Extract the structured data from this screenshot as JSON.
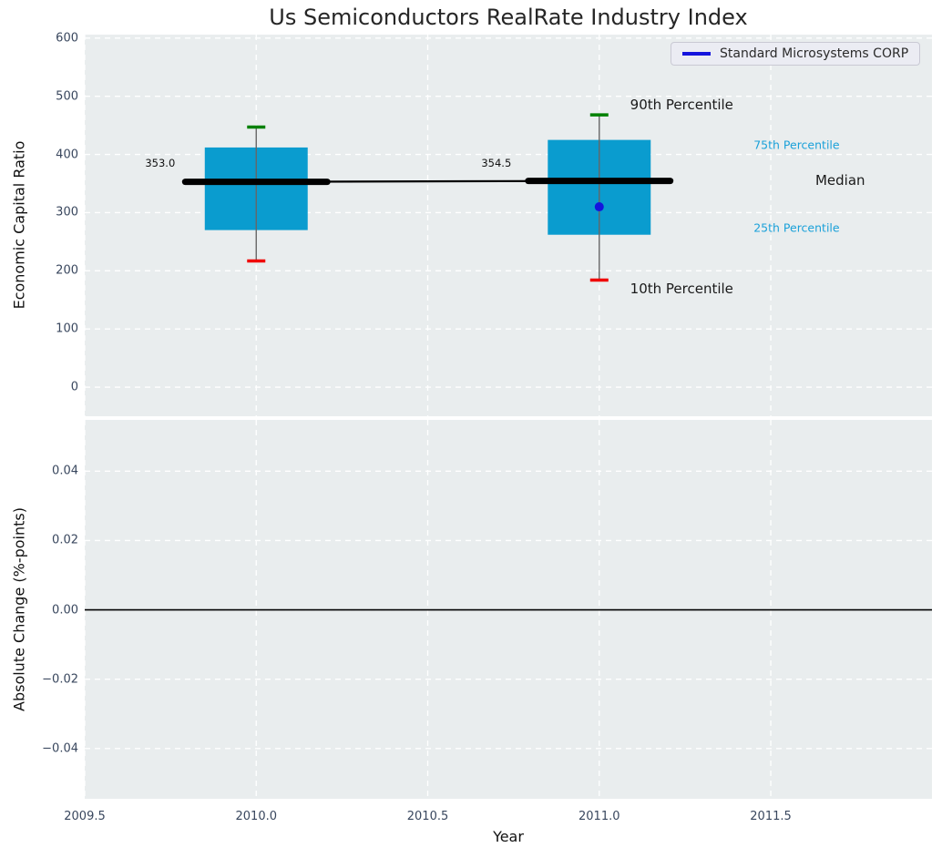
{
  "figure": {
    "title": "Us Semiconductors RealRate Industry Index",
    "legend": {
      "label": "Standard Microsystems CORP"
    }
  },
  "colors": {
    "plot_bg": "#e9edee",
    "grid": "#ffffff",
    "box_fill": "#0a9ccf",
    "whisker": "#666666",
    "cap_top": "#008000",
    "cap_bottom": "#f00000",
    "median_line": "#000000",
    "series_blue": "#1414dd",
    "tick_label": "#39475e",
    "percentile_label": "#1ba1d9",
    "zero_line": "#000000"
  },
  "chart_data": [
    {
      "type": "boxplot",
      "panel": "top",
      "title": "Us Semiconductors RealRate Industry Index",
      "ylabel": "Economic Capital Ratio",
      "xlim": [
        2009.5,
        2011.97
      ],
      "ylim": [
        -50,
        606
      ],
      "grid": true,
      "legend_position": "upper right",
      "xticks": [
        {
          "value": 2009.5,
          "label": "2009.5"
        },
        {
          "value": 2010.0,
          "label": "2010.0"
        },
        {
          "value": 2010.5,
          "label": "2010.5"
        },
        {
          "value": 2011.0,
          "label": "2011.0"
        },
        {
          "value": 2011.5,
          "label": "2011.5"
        }
      ],
      "yticks": [
        {
          "value": 0,
          "label": "0"
        },
        {
          "value": 100,
          "label": "100"
        },
        {
          "value": 200,
          "label": "200"
        },
        {
          "value": 300,
          "label": "300"
        },
        {
          "value": 400,
          "label": "400"
        },
        {
          "value": 500,
          "label": "500"
        },
        {
          "value": 600,
          "label": "600"
        }
      ],
      "boxes": [
        {
          "x": 2010,
          "p10": 217,
          "p25": 270,
          "median": 353.0,
          "p75": 412,
          "p90": 447
        },
        {
          "x": 2011,
          "p10": 184,
          "p25": 262,
          "median": 354.5,
          "p75": 425,
          "p90": 468
        }
      ],
      "series": [
        {
          "name": "Standard Microsystems CORP",
          "points": [
            {
              "x": 2011,
              "y": 310
            }
          ]
        }
      ],
      "annotations": [
        {
          "text": "353.0",
          "x": 2009.72,
          "y": 385,
          "style": "value"
        },
        {
          "text": "354.5",
          "x": 2010.7,
          "y": 385,
          "style": "value"
        },
        {
          "text": "90th Percentile",
          "x": 2011.09,
          "y": 486,
          "style": "big"
        },
        {
          "text": "75th Percentile",
          "x": 2011.45,
          "y": 417,
          "style": "cyan"
        },
        {
          "text": "Median",
          "x": 2011.63,
          "y": 356,
          "style": "big"
        },
        {
          "text": "25th Percentile",
          "x": 2011.45,
          "y": 274,
          "style": "cyan"
        },
        {
          "text": "10th Percentile",
          "x": 2011.09,
          "y": 169,
          "style": "big"
        }
      ]
    },
    {
      "type": "line",
      "panel": "bottom",
      "ylabel": "Absolute Change (%-points)",
      "xlabel": "Year",
      "xlim": [
        2009.5,
        2011.97
      ],
      "ylim": [
        -0.0545,
        0.0548
      ],
      "grid": true,
      "zero_line_y": 0.0,
      "yticks": [
        {
          "value": 0.04,
          "label": "0.04"
        },
        {
          "value": 0.02,
          "label": "0.02"
        },
        {
          "value": 0.0,
          "label": "0.00"
        },
        {
          "value": -0.02,
          "label": "−0.02"
        },
        {
          "value": -0.04,
          "label": "−0.04"
        }
      ],
      "series": []
    }
  ]
}
